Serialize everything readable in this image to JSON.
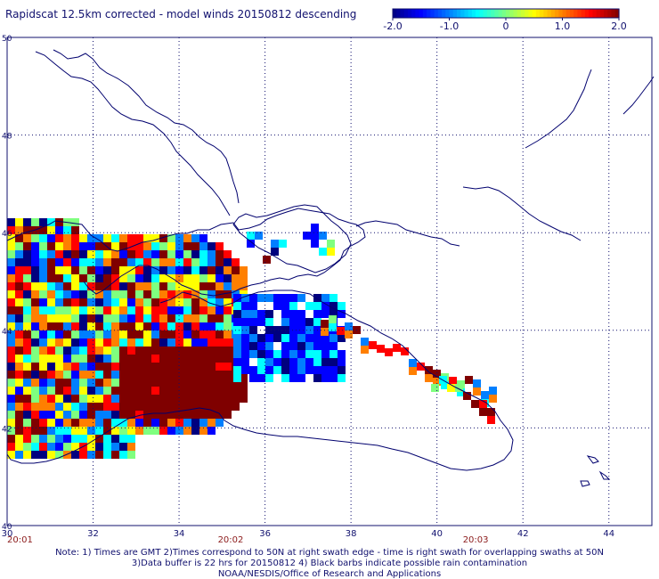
{
  "title": "Rapidscat 12.5km corrected - model winds 20150812 descending",
  "colorbar": {
    "min": -2.0,
    "max": 2.0,
    "tick_labels": [
      "-2.0",
      "-1.0",
      "0",
      "1.0",
      "2.0"
    ],
    "tick_values": [
      -2.0,
      -1.0,
      0,
      1.0,
      2.0
    ]
  },
  "map": {
    "lon_range": [
      30,
      45
    ],
    "lat_range": [
      40,
      50
    ],
    "lon_ticks": [
      "30",
      "32",
      "34",
      "36",
      "38",
      "40",
      "42",
      "44"
    ],
    "lat_ticks": [
      "40",
      "42",
      "44",
      "46",
      "48",
      "50"
    ],
    "time_labels": [
      {
        "text": "20:01",
        "lon": 30.0
      },
      {
        "text": "20:02",
        "lon": 35.2
      },
      {
        "text": "20:03",
        "lon": 40.9
      }
    ]
  },
  "colors": {
    "text": "#10106e",
    "coast": "#00006e",
    "grid": "#10106e",
    "time_label": "#8b1a1a",
    "colormap": [
      "#00007f",
      "#0000ff",
      "#007fff",
      "#00ffff",
      "#7fff7f",
      "#ffff00",
      "#ff7f00",
      "#ff0000",
      "#7f0000"
    ]
  },
  "notes": {
    "line1": "Note: 1) Times are GMT 2)Times correspond to 50N at right swath edge - time is right swath for overlapping swaths at 50N",
    "line2": "3)Data buffer is 22 hrs for 20150812 4) Black barbs indicate possible rain contamination",
    "line3": "NOAA/NESDIS/Office of Research and Applications"
  }
}
